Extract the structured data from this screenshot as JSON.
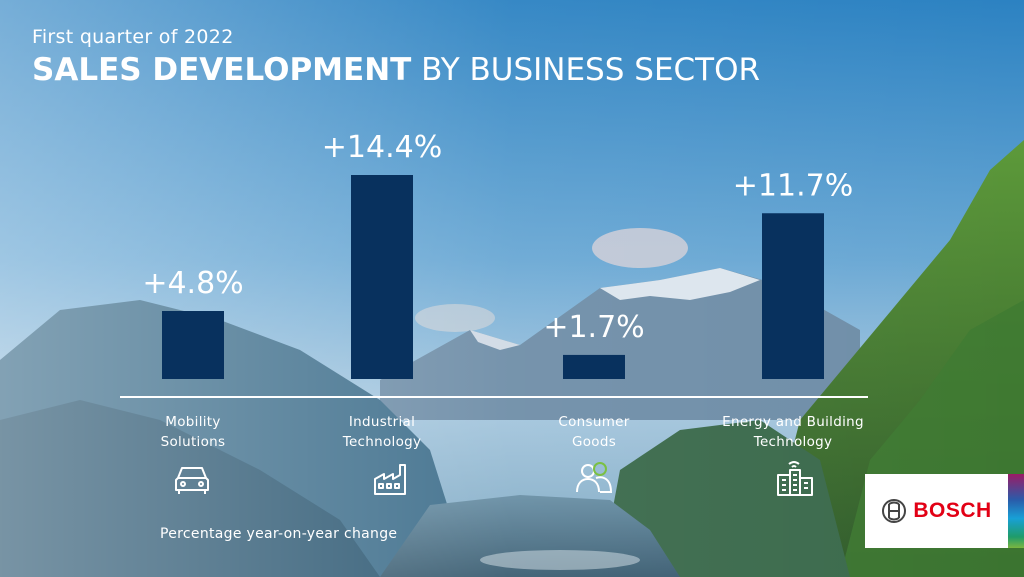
{
  "header": {
    "subtitle": "First quarter of 2022",
    "title_bold": "SALES DEVELOPMENT",
    "title_light": "BY BUSINESS SECTOR"
  },
  "chart_data": {
    "type": "bar",
    "categories": [
      "Mobility Solutions",
      "Industrial Technology",
      "Consumer Goods",
      "Energy and Building Technology"
    ],
    "category_lines": [
      [
        "Mobility",
        "Solutions"
      ],
      [
        "Industrial",
        "Technology"
      ],
      [
        "Consumer",
        "Goods"
      ],
      [
        "Energy and Building",
        "Technology"
      ]
    ],
    "values": [
      4.8,
      14.4,
      1.7,
      11.7
    ],
    "value_labels": [
      "+4.8%",
      "+14.4%",
      "+1.7%",
      "+11.7%"
    ],
    "unit": "%",
    "ylim": [
      0,
      14.4
    ],
    "grid": false,
    "bar_color": "#08315e",
    "icons": [
      "car-icon",
      "factory-icon",
      "people-icon",
      "smart-building-icon"
    ]
  },
  "footnote": "Percentage year-on-year change",
  "logo": {
    "text": "BOSCH",
    "color": "#e20015"
  }
}
